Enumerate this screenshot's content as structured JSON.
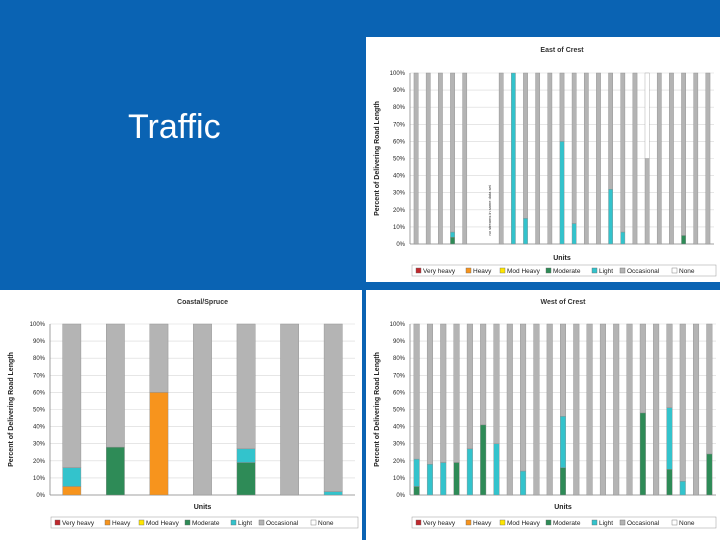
{
  "slide": {
    "title": "Traffic"
  },
  "colors": {
    "Very heavy": "#c0282d",
    "Heavy": "#f7941d",
    "Mod Heavy": "#ffe600",
    "Moderate": "#2e8b57",
    "Light": "#33c3cc",
    "Occasional": "#b4b4b4",
    "None": "#ffffff"
  },
  "chart_data": [
    {
      "id": "east",
      "type": "bar",
      "stacked": true,
      "title": "East of Crest",
      "xlabel": "Units",
      "ylabel": "Percent of Delivering Road Length",
      "ylim": [
        0,
        100
      ],
      "yticks": [
        "0%",
        "10%",
        "20%",
        "30%",
        "40%",
        "50%",
        "60%",
        "70%",
        "80%",
        "90%",
        "100%"
      ],
      "annotations": [
        {
          "text": "no streams in same data set",
          "category_index": 6
        }
      ],
      "legend": [
        "Very heavy",
        "Heavy",
        "Mod Heavy",
        "Moderate",
        "Light",
        "Occasional",
        "None"
      ],
      "categories": [
        "1",
        "2",
        "3",
        "4",
        "5",
        "6",
        "7",
        "8",
        "9",
        "10",
        "11",
        "12",
        "13",
        "14",
        "15",
        "16",
        "17",
        "18",
        "19",
        "20",
        "21",
        "22",
        "23",
        "24",
        "25"
      ],
      "series": [
        {
          "name": "Moderate",
          "values": [
            0,
            0,
            0,
            4,
            0,
            0,
            0,
            0,
            0,
            0,
            0,
            0,
            0,
            0,
            0,
            0,
            0,
            0,
            0,
            0,
            0,
            0,
            5,
            0,
            0
          ]
        },
        {
          "name": "Light",
          "values": [
            0,
            0,
            0,
            3,
            0,
            0,
            0,
            0,
            100,
            15,
            0,
            0,
            60,
            12,
            0,
            0,
            32,
            7,
            0,
            0,
            0,
            0,
            0,
            0,
            0
          ]
        },
        {
          "name": "Occasional",
          "values": [
            100,
            100,
            100,
            93,
            100,
            0,
            0,
            100,
            0,
            85,
            100,
            100,
            40,
            88,
            100,
            100,
            68,
            93,
            100,
            50,
            100,
            100,
            95,
            100,
            100
          ]
        },
        {
          "name": "None",
          "values": [
            0,
            0,
            0,
            0,
            0,
            0,
            0,
            0,
            0,
            0,
            0,
            0,
            0,
            0,
            0,
            0,
            0,
            0,
            0,
            50,
            0,
            0,
            0,
            0,
            0
          ]
        }
      ]
    },
    {
      "id": "coastal",
      "type": "bar",
      "stacked": true,
      "title": "Coastal/Spruce",
      "xlabel": "Units",
      "ylabel": "Percent of Delivering Road Length",
      "ylim": [
        0,
        100
      ],
      "yticks": [
        "0%",
        "10%",
        "20%",
        "30%",
        "40%",
        "50%",
        "60%",
        "70%",
        "80%",
        "90%",
        "100%"
      ],
      "legend": [
        "Very heavy",
        "Heavy",
        "Mod Heavy",
        "Moderate",
        "Light",
        "Occasional",
        "None"
      ],
      "categories": [
        "1",
        "2",
        "3",
        "4",
        "5",
        "6",
        "7"
      ],
      "series": [
        {
          "name": "Heavy",
          "values": [
            5,
            0,
            60,
            0,
            0,
            0,
            0
          ]
        },
        {
          "name": "Moderate",
          "values": [
            0,
            28,
            0,
            0,
            19,
            0,
            0
          ]
        },
        {
          "name": "Light",
          "values": [
            11,
            0,
            0,
            0,
            8,
            0,
            2
          ]
        },
        {
          "name": "Occasional",
          "values": [
            84,
            72,
            40,
            100,
            73,
            100,
            98
          ]
        }
      ]
    },
    {
      "id": "west",
      "type": "bar",
      "stacked": true,
      "title": "West of Crest",
      "xlabel": "Units",
      "ylabel": "Percent of Delivering Road Length",
      "ylim": [
        0,
        100
      ],
      "yticks": [
        "0%",
        "10%",
        "20%",
        "30%",
        "40%",
        "50%",
        "60%",
        "70%",
        "80%",
        "90%",
        "100%"
      ],
      "legend": [
        "Very heavy",
        "Heavy",
        "Mod Heavy",
        "Moderate",
        "Light",
        "Occasional",
        "None"
      ],
      "categories": [
        "1",
        "2",
        "3",
        "4",
        "5",
        "6",
        "7",
        "8",
        "9",
        "10",
        "11",
        "12",
        "13",
        "14",
        "15",
        "16",
        "17",
        "18",
        "19",
        "20",
        "21",
        "22",
        "23"
      ],
      "series": [
        {
          "name": "Moderate",
          "values": [
            5,
            0,
            0,
            19,
            0,
            41,
            0,
            0,
            0,
            0,
            0,
            16,
            0,
            0,
            0,
            0,
            0,
            48,
            0,
            15,
            0,
            0,
            24
          ]
        },
        {
          "name": "Light",
          "values": [
            16,
            18,
            19,
            0,
            27,
            0,
            30,
            0,
            14,
            0,
            0,
            30,
            0,
            0,
            0,
            0,
            0,
            0,
            0,
            36,
            8,
            0,
            0
          ]
        },
        {
          "name": "Occasional",
          "values": [
            79,
            82,
            81,
            81,
            73,
            59,
            70,
            100,
            86,
            100,
            100,
            54,
            100,
            100,
            100,
            100,
            100,
            52,
            100,
            49,
            92,
            100,
            76
          ]
        }
      ]
    }
  ]
}
